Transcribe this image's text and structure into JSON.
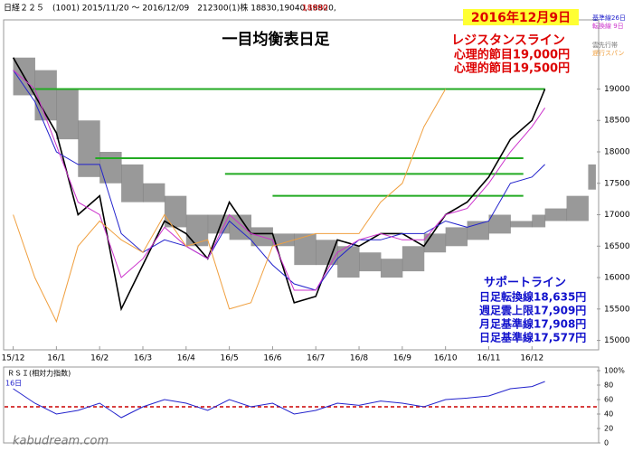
{
  "header": {
    "info": "日経２２５　(1001) 2015/11/20 ～ 2016/12/09　212300(1)株 18830,19040,18820,",
    "last": "18990"
  },
  "watermark": "kabudream.com",
  "chart_data": [
    {
      "type": "ichimoku",
      "title": "一目均衡表日足",
      "date_label": "2016年12月9日",
      "annotations_resistance": [
        "レジスタンスライン",
        "心理的節目19,000円",
        "心理的節目19,500円"
      ],
      "annotations_support": [
        "サポートライン",
        "日足転換線18,635円",
        "週足雲上限17,909円",
        "月足基準線17,908円",
        "日足基準線17,577円"
      ],
      "xlim": [
        -0.2,
        13.5
      ],
      "xticks": [
        {
          "value": 0,
          "label": "15/12"
        },
        {
          "value": 1,
          "label": "16/1"
        },
        {
          "value": 2,
          "label": "16/2"
        },
        {
          "value": 3,
          "label": "16/3"
        },
        {
          "value": 4,
          "label": "16/4"
        },
        {
          "value": 5,
          "label": "16/5"
        },
        {
          "value": 6,
          "label": "16/6"
        },
        {
          "value": 7,
          "label": "16/7"
        },
        {
          "value": 8,
          "label": "16/8"
        },
        {
          "value": 9,
          "label": "16/9"
        },
        {
          "value": 10,
          "label": "16/10"
        },
        {
          "value": 11,
          "label": "16/11"
        },
        {
          "value": 12,
          "label": "16/12"
        }
      ],
      "ylim": [
        14850,
        20100
      ],
      "yticks": [
        15000,
        15500,
        16000,
        16500,
        17000,
        17500,
        18000,
        18500,
        19000
      ],
      "x": [
        0,
        0.5,
        1,
        1.5,
        2,
        2.5,
        3,
        3.5,
        4,
        4.5,
        5,
        5.5,
        6,
        6.5,
        7,
        7.5,
        8,
        8.5,
        9,
        9.5,
        10,
        10.5,
        11,
        11.5,
        12,
        12.3,
        12.8,
        13.3
      ],
      "series": [
        {
          "color": "#000000",
          "values": [
            19500,
            18900,
            18300,
            17000,
            17300,
            15500,
            16200,
            16900,
            16700,
            16300,
            17200,
            16700,
            16700,
            15600,
            15700,
            16600,
            16500,
            16700,
            16700,
            16500,
            17000,
            17200,
            17600,
            18200,
            18500,
            19000,
            null,
            null
          ]
        },
        {
          "name": "基準線26日",
          "color": "#2222cc",
          "values": [
            19300,
            18800,
            18000,
            17800,
            17800,
            16700,
            16400,
            16600,
            16500,
            16300,
            16900,
            16600,
            16200,
            15900,
            15800,
            16300,
            16600,
            16600,
            16700,
            16700,
            16900,
            16800,
            16900,
            17500,
            17600,
            17800,
            null,
            null
          ]
        },
        {
          "name": "転換線 9日",
          "color": "#cc33cc",
          "values": [
            19300,
            19000,
            18100,
            17200,
            17000,
            16000,
            16300,
            16800,
            16500,
            16300,
            17000,
            16700,
            16600,
            15800,
            15800,
            16400,
            16600,
            16700,
            16600,
            16600,
            17000,
            17100,
            17500,
            18000,
            18400,
            18700,
            null,
            null
          ]
        },
        {
          "name": "遅行スパン",
          "color": "#f0a040",
          "values": [
            17000,
            16000,
            15300,
            16500,
            16900,
            16600,
            16400,
            17000,
            16500,
            16600,
            15500,
            15600,
            16500,
            16600,
            16700,
            16700,
            16700,
            17200,
            17500,
            18400,
            19000,
            null,
            null,
            null,
            null,
            null,
            null,
            null
          ]
        }
      ],
      "cloud": {
        "name": "雲先行帯",
        "color": "#777777",
        "upper": [
          19500,
          19300,
          19000,
          18500,
          18000,
          17800,
          17500,
          17300,
          17000,
          17000,
          17000,
          16800,
          16700,
          16700,
          16600,
          16500,
          16400,
          16300,
          16500,
          16700,
          16800,
          16900,
          17000,
          16900,
          17000,
          17100,
          17300,
          17800
        ],
        "lower": [
          18900,
          18500,
          18200,
          17600,
          17500,
          17200,
          17200,
          16800,
          16500,
          16700,
          16600,
          16500,
          16500,
          16200,
          16200,
          16000,
          16100,
          16000,
          16100,
          16400,
          16500,
          16600,
          16700,
          16800,
          16800,
          16900,
          16900,
          17400
        ]
      },
      "levels": {
        "color": "#22aa22",
        "values": [
          19000,
          17900,
          17650,
          17300
        ],
        "from": [
          0.45,
          1.9,
          4.9,
          6.0
        ],
        "to": [
          12.3,
          11.8,
          11.8,
          11.8
        ]
      }
    },
    {
      "type": "rsi",
      "title": "ＲＳＩ(相対力指数)",
      "period": "16日",
      "ylim": [
        0,
        100
      ],
      "yticks": [
        0,
        20,
        40,
        60,
        80,
        {
          "value": 100,
          "label": "100%"
        }
      ],
      "threshold": 50,
      "color": "#2222cc",
      "values": [
        75,
        55,
        40,
        45,
        55,
        35,
        50,
        60,
        55,
        45,
        60,
        50,
        55,
        40,
        45,
        55,
        52,
        58,
        55,
        50,
        60,
        62,
        65,
        75,
        78,
        85,
        null,
        null
      ]
    }
  ]
}
